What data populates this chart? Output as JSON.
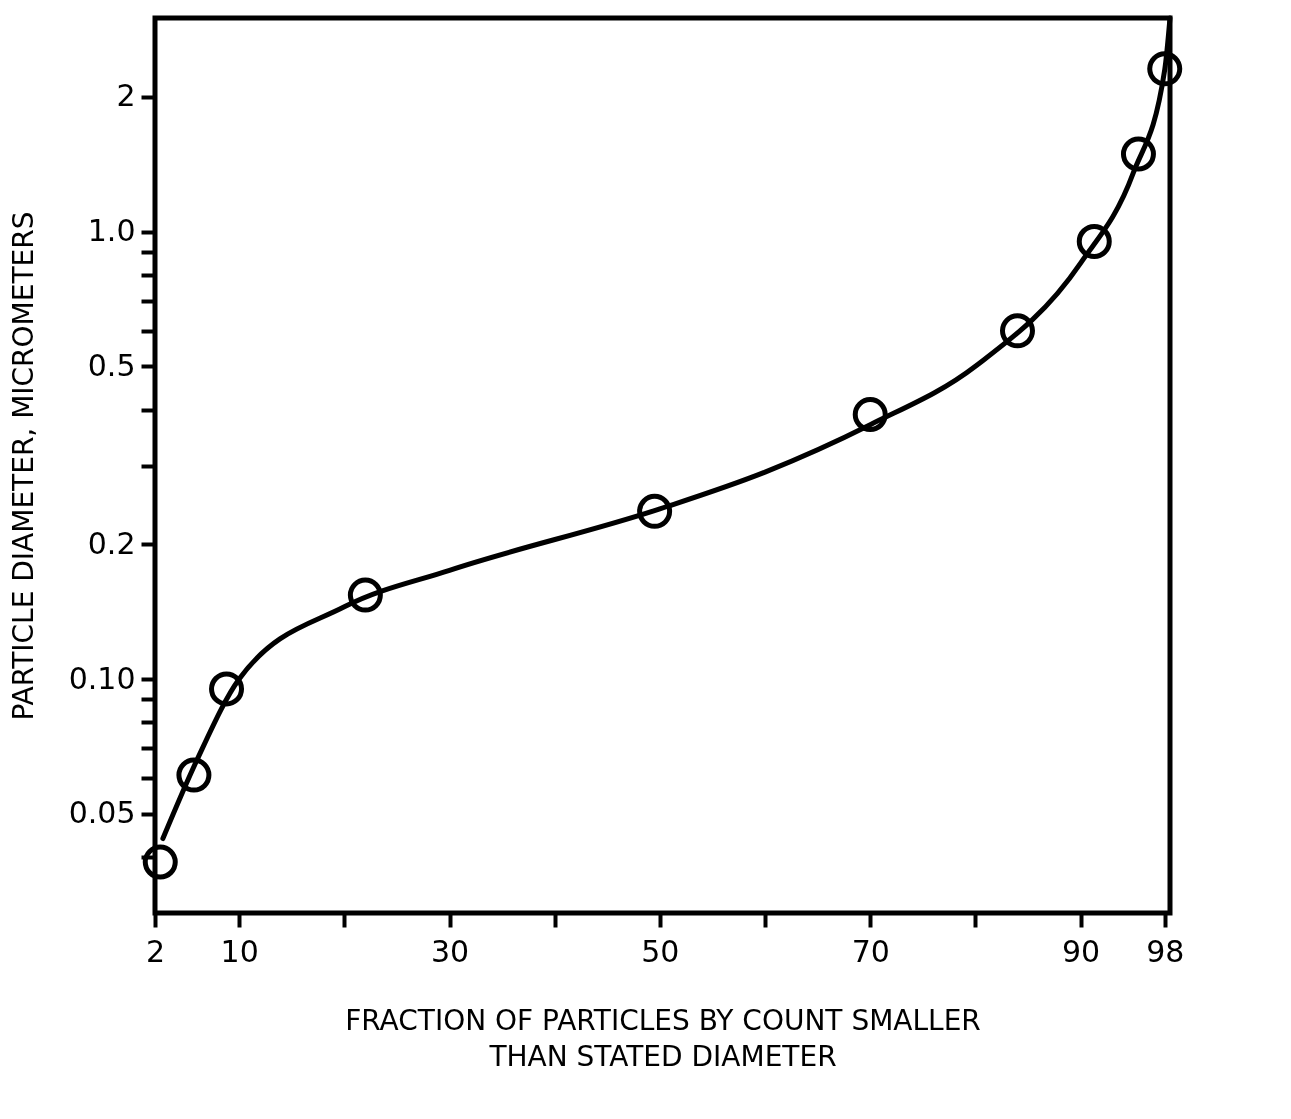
{
  "chart_data": {
    "type": "scatter",
    "xlabel": "FRACTION OF PARTICLES BY COUNT SMALLER\nTHAN STATED DIAMETER",
    "ylabel": "PARTICLE DIAMETER, MICROMETERS",
    "x": [
      2.5,
      5.7,
      8.8,
      22,
      49.5,
      70,
      84,
      91.3,
      95.5,
      98
    ],
    "series": [
      {
        "color": "#000000",
        "marker": "circle",
        "values": [
          0.039,
          0.061,
          0.095,
          0.154,
          0.237,
          0.39,
          0.6,
          0.95,
          1.49,
          2.31
        ]
      },
      {
        "type": "line",
        "color": "#000000",
        "marker": "none",
        "line_style": "solid",
        "x": [
          2.75,
          6,
          10,
          20,
          30,
          50,
          60,
          70,
          80,
          90,
          95,
          98,
          98.5
        ],
        "values": [
          0.044,
          0.066,
          0.1,
          0.145,
          0.175,
          0.24,
          0.29,
          0.37,
          0.5,
          0.85,
          1.35,
          2.3,
          3.0
        ]
      }
    ],
    "xlim": [
      2,
      98.5
    ],
    "xticks": [
      2,
      10,
      {
        "value": 20,
        "label": null
      },
      30,
      {
        "value": 40,
        "label": null
      },
      50,
      {
        "value": 60,
        "label": null
      },
      70,
      {
        "value": 80,
        "label": null
      },
      90,
      98
    ],
    "ylim": [
      0.03,
      3
    ],
    "log": "y",
    "yticks": [
      {
        "value": 0.04,
        "label": null
      },
      0.05,
      {
        "value": 0.06,
        "label": null
      },
      {
        "value": 0.07,
        "label": null
      },
      {
        "value": 0.08,
        "label": null
      },
      {
        "value": 0.09,
        "label": null
      },
      {
        "value": 0.1,
        "label": "0.10"
      },
      0.2,
      {
        "value": 0.3,
        "label": null
      },
      {
        "value": 0.4,
        "label": null
      },
      0.5,
      {
        "value": 0.6,
        "label": null
      },
      {
        "value": 0.7,
        "label": null
      },
      {
        "value": 0.8,
        "label": null
      },
      {
        "value": 0.9,
        "label": null
      },
      {
        "value": 1,
        "label": "1.0"
      },
      2
    ],
    "grid": false
  }
}
